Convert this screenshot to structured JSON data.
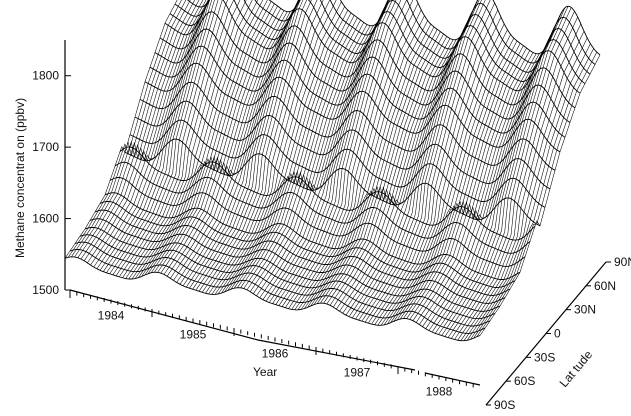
{
  "chart_data": {
    "type": "surface",
    "zlabel": "Methane concentrat on (ppbv)",
    "xlabel": "Year",
    "ylabel": "Lat tude",
    "z_ticks": [
      "1500",
      "1600",
      "1700",
      "1800"
    ],
    "z_range": [
      1500,
      1850
    ],
    "x_ticks": [
      "1984",
      "1985",
      "1986",
      "1987",
      "1988"
    ],
    "x_range": [
      1983.5,
      1988.5
    ],
    "y_ticks": [
      "90S",
      "60S",
      "30S",
      "0",
      "30N",
      "60N",
      "90N"
    ],
    "y_range": [
      -90,
      90
    ],
    "latitudes": [
      -90,
      -60,
      -30,
      0,
      30,
      60,
      90
    ],
    "series": [
      {
        "latitude": "90S",
        "base": 1545,
        "growth": 12,
        "amplitude": 8,
        "values_per_year": [
          1546,
          1558,
          1570,
          1582,
          1594
        ]
      },
      {
        "latitude": "60S",
        "base": 1550,
        "growth": 12,
        "amplitude": 8,
        "values_per_year": [
          1551,
          1563,
          1575,
          1587,
          1599
        ]
      },
      {
        "latitude": "30S",
        "base": 1560,
        "growth": 12,
        "amplitude": 10,
        "values_per_year": [
          1561,
          1573,
          1585,
          1597,
          1609
        ]
      },
      {
        "latitude": "0",
        "base": 1600,
        "growth": 13,
        "amplitude": 18,
        "values_per_year": [
          1602,
          1615,
          1628,
          1641,
          1654
        ]
      },
      {
        "latitude": "30N",
        "base": 1665,
        "growth": 14,
        "amplitude": 22,
        "values_per_year": [
          1668,
          1682,
          1696,
          1710,
          1724
        ]
      },
      {
        "latitude": "60N",
        "base": 1715,
        "growth": 14,
        "amplitude": 30,
        "values_per_year": [
          1718,
          1732,
          1746,
          1760,
          1774
        ]
      },
      {
        "latitude": "90N",
        "base": 1735,
        "growth": 14,
        "amplitude": 35,
        "values_per_year": [
          1738,
          1752,
          1766,
          1780,
          1794
        ]
      }
    ]
  }
}
